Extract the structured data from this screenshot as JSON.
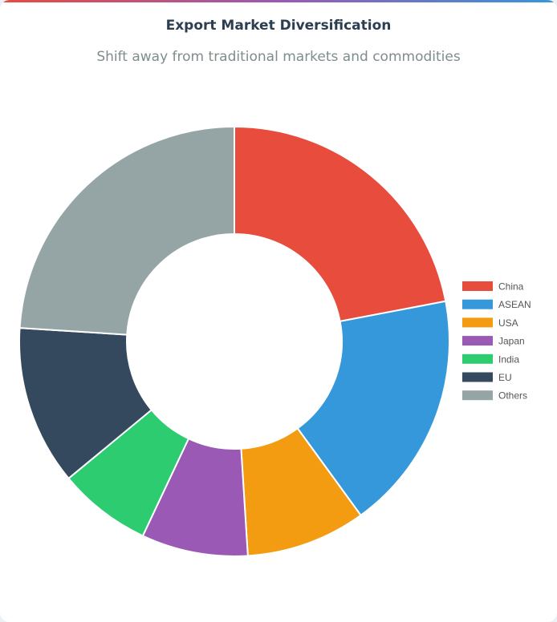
{
  "chart_data": {
    "type": "pie",
    "variant": "doughnut",
    "title": "Export Market Diversification",
    "subtitle": "Shift away from traditional markets and commodities",
    "categories": [
      "China",
      "ASEAN",
      "USA",
      "Japan",
      "India",
      "EU",
      "Others"
    ],
    "values": [
      22,
      18,
      9,
      8,
      7,
      12,
      24
    ],
    "colors": [
      "#e74c3c",
      "#3498db",
      "#f39c12",
      "#9b59b6",
      "#2ecc71",
      "#34495e",
      "#95a5a6"
    ],
    "legend_position": "right"
  },
  "theme": {
    "accent_gradient": [
      "#e74c3c",
      "#9b59b6",
      "#3498db"
    ]
  }
}
